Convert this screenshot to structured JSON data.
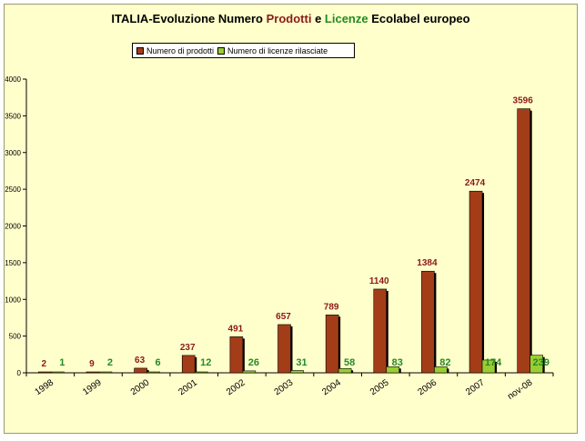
{
  "title": {
    "part1": "ITALIA-Evoluzione Numero ",
    "part2": "Prodotti",
    "part3": " e  ",
    "part4": "Licenze",
    "part5": " Ecolabel europeo"
  },
  "colors": {
    "prodotti": "#a33d18",
    "licenze": "#9acd32",
    "prodotti_label": "#8b1a1a",
    "licenze_label": "#228b22",
    "background": "#ffffcc"
  },
  "chart_data": {
    "type": "bar",
    "categories": [
      "1998",
      "1999",
      "2000",
      "2001",
      "2002",
      "2003",
      "2004",
      "2005",
      "2006",
      "2007",
      "nov-08"
    ],
    "series": [
      {
        "name": "Numero di prodotti",
        "values": [
          2,
          9,
          63,
          237,
          491,
          657,
          789,
          1140,
          1384,
          2474,
          3596
        ]
      },
      {
        "name": "Numero di licenze rilasciate",
        "values": [
          1,
          2,
          6,
          12,
          26,
          31,
          58,
          83,
          82,
          174,
          239
        ]
      }
    ],
    "ylim": [
      0,
      4000
    ],
    "yticks": [
      0,
      500,
      1000,
      1500,
      2000,
      2500,
      3000,
      3500,
      4000
    ],
    "legend_position": "top-left",
    "grid": false
  }
}
